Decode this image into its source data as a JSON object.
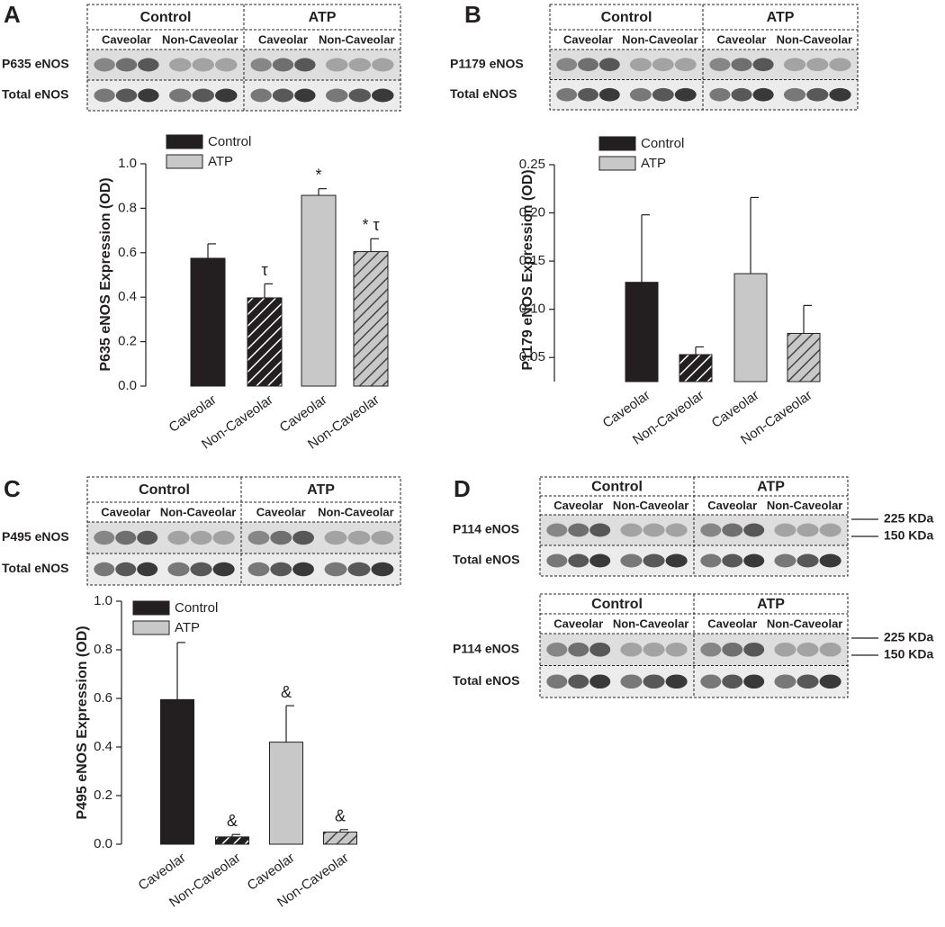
{
  "panel_letters": [
    "A",
    "B",
    "C",
    "D"
  ],
  "chart_data": [
    {
      "type": "bar",
      "ylabel": "P635 eNOS Expression (OD)",
      "categories": [
        "Caveolar",
        "Non-Caveolar",
        "Caveolar",
        "Non-Caveolar"
      ],
      "values": [
        0.575,
        0.397,
        0.858,
        0.605
      ],
      "errors": [
        0.065,
        0.063,
        0.03,
        0.058
      ],
      "annotations": [
        null,
        "τ",
        "*",
        "* τ"
      ],
      "bar_colors": [
        "#231f20",
        "#231f20",
        "#c8c8c8",
        "#c8c8c8"
      ],
      "hatched": [
        false,
        true,
        false,
        true
      ],
      "legend": [
        {
          "name": "Control",
          "color": "#231f20"
        },
        {
          "name": "ATP",
          "color": "#c8c8c8"
        }
      ],
      "ylim": [
        0,
        1.0
      ],
      "yticks": [
        {
          "value": 0,
          "label": "0.0"
        },
        0.2,
        0.4,
        0.6,
        0.8,
        {
          "value": 1.0,
          "label": "1.0"
        }
      ]
    },
    {
      "type": "bar",
      "ylabel": "P1179 eNOS Expression (OD)",
      "categories": [
        "Caveolar",
        "Non-Caveolar",
        "Caveolar",
        "Non-Caveolar"
      ],
      "values": [
        0.128,
        0.053,
        0.137,
        0.075
      ],
      "errors": [
        0.07,
        0.008,
        0.079,
        0.029
      ],
      "bar_colors": [
        "#231f20",
        "#231f20",
        "#c8c8c8",
        "#c8c8c8"
      ],
      "hatched": [
        false,
        true,
        false,
        true
      ],
      "legend": [
        {
          "name": "Control",
          "color": "#231f20"
        },
        {
          "name": "ATP",
          "color": "#c8c8c8"
        }
      ],
      "ylim": [
        0.025,
        0.25
      ],
      "yticks": [
        0.05,
        {
          "value": 0.1,
          "label": "0.10"
        },
        0.15,
        {
          "value": 0.2,
          "label": "0.20"
        },
        0.25
      ]
    },
    {
      "type": "bar",
      "ylabel": "P495 eNOS Expression (OD)",
      "categories": [
        "Caveolar",
        "Non-Caveolar",
        "Caveolar",
        "Non-Caveolar"
      ],
      "values": [
        0.595,
        0.03,
        0.42,
        0.05
      ],
      "errors": [
        0.235,
        0.01,
        0.15,
        0.01
      ],
      "annotations": [
        null,
        "&",
        "&",
        "&"
      ],
      "bar_colors": [
        "#231f20",
        "#231f20",
        "#c8c8c8",
        "#c8c8c8"
      ],
      "hatched": [
        false,
        true,
        false,
        true
      ],
      "legend": [
        {
          "name": "Control",
          "color": "#231f20"
        },
        {
          "name": "ATP",
          "color": "#c8c8c8"
        }
      ],
      "ylim": [
        0,
        1.0
      ],
      "yticks": [
        {
          "value": 0,
          "label": "0.0"
        },
        0.2,
        0.4,
        0.6,
        0.8,
        {
          "value": 1.0,
          "label": "1.0"
        }
      ]
    }
  ],
  "blots": [
    {
      "groups": [
        "Control",
        "ATP"
      ],
      "lanes": [
        "Caveolar",
        "Non-Caveolar",
        "Caveolar",
        "Non-Caveolar"
      ],
      "rows": [
        "P635 eNOS",
        "Total eNOS"
      ]
    },
    {
      "groups": [
        "Control",
        "ATP"
      ],
      "lanes": [
        "Caveolar",
        "Non-Caveolar",
        "Caveolar",
        "Non-Caveolar"
      ],
      "rows": [
        "P1179 eNOS",
        "Total eNOS"
      ]
    },
    {
      "groups": [
        "Control",
        "ATP"
      ],
      "lanes": [
        "Caveolar",
        "Non-Caveolar",
        "Caveolar",
        "Non-Caveolar"
      ],
      "rows": [
        "P495 eNOS",
        "Total eNOS"
      ]
    },
    {
      "groups": [
        "Control",
        "ATP"
      ],
      "lanes": [
        "Caveolar",
        "Non-Caveolar",
        "Caveolar",
        "Non-Caveolar"
      ],
      "rows": [
        "P114 eNOS",
        "Total eNOS"
      ],
      "markers": [
        "225 KDa",
        "150 KDa"
      ]
    },
    {
      "groups": [
        "Control",
        "ATP"
      ],
      "lanes": [
        "Caveolar",
        "Non-Caveolar",
        "Caveolar",
        "Non-Caveolar"
      ],
      "rows": [
        "P114 eNOS",
        "Total eNOS"
      ],
      "markers": [
        "225 KDa",
        "150 KDa"
      ]
    }
  ]
}
